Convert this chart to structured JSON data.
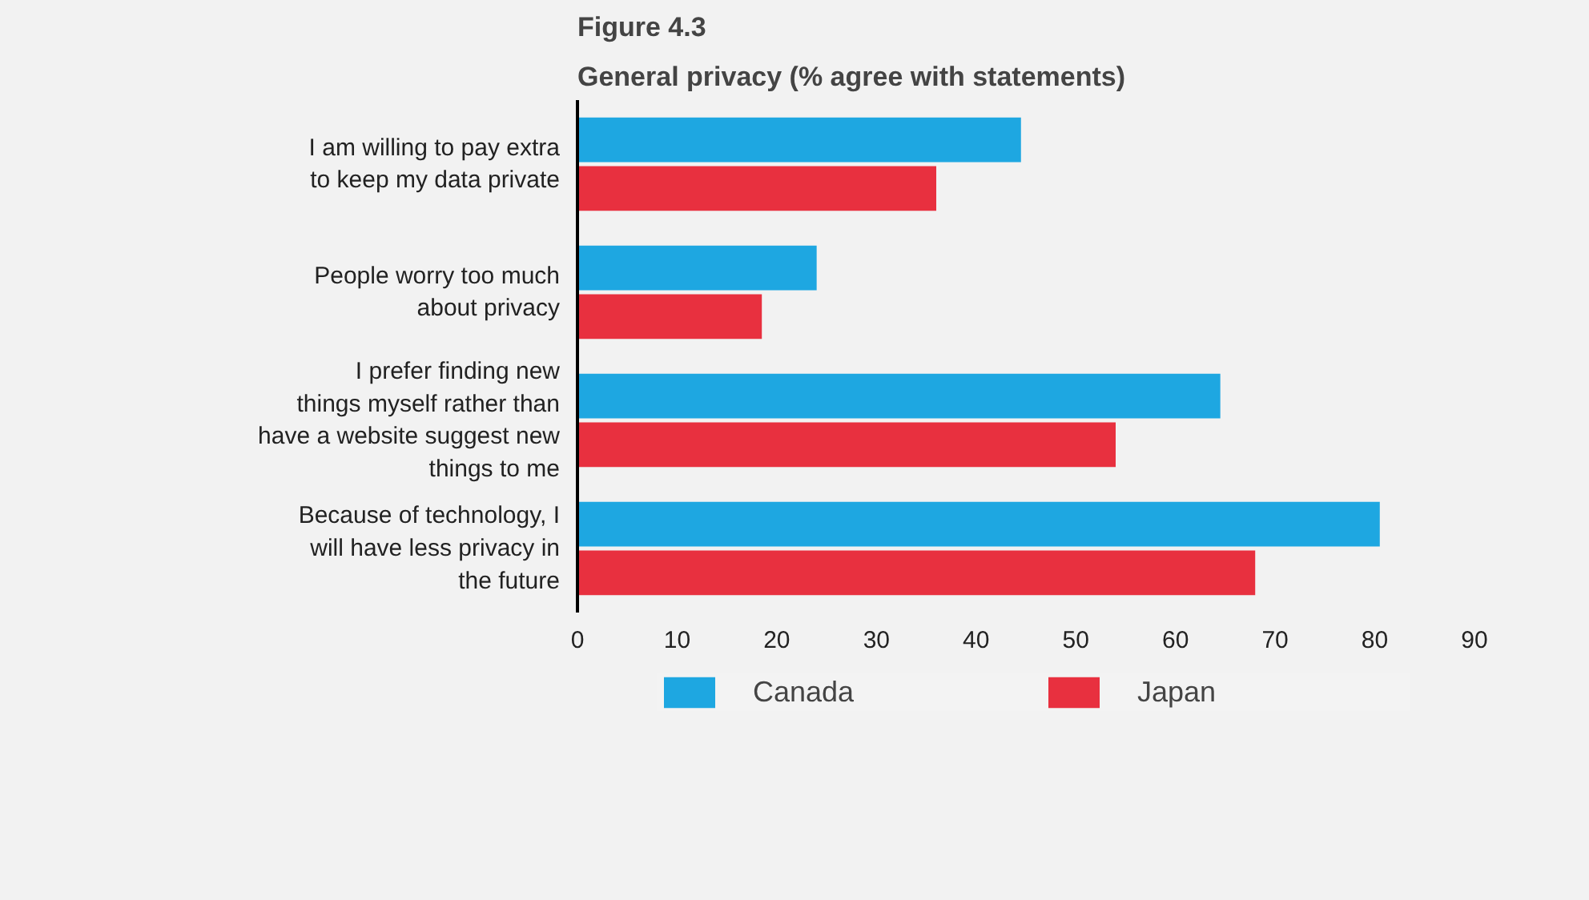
{
  "chart_data": {
    "type": "bar",
    "orientation": "horizontal",
    "title": "Figure 4.3",
    "subtitle": "General privacy (% agree with statements)",
    "categories": [
      "I am willing to pay extra to keep my data private",
      "People worry too much about privacy",
      "I prefer finding new things myself rather than have a website suggest new things to me",
      "Because of technology, I will have less privacy in the future"
    ],
    "series": [
      {
        "name": "Canada",
        "color": "#1ea7e1",
        "values": [
          44.5,
          24,
          64.5,
          80.5
        ]
      },
      {
        "name": "Japan",
        "color": "#e8303f",
        "values": [
          36,
          18.5,
          54,
          68
        ]
      }
    ],
    "xlim": [
      0,
      90
    ],
    "xticks": [
      0,
      10,
      20,
      30,
      40,
      50,
      60,
      70,
      80,
      90
    ],
    "legend": "bottom"
  }
}
